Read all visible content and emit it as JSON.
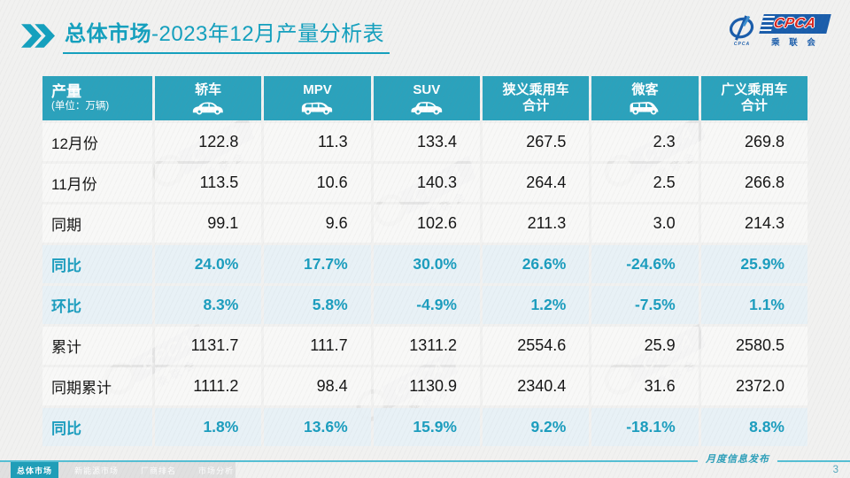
{
  "title": {
    "highlight": "总体市场",
    "rest": "-2023年12月产量分析表"
  },
  "logo": {
    "cpca": "CPCA",
    "association": "乘 联 会",
    "emblem_caption": "CPCA"
  },
  "table": {
    "corner": {
      "title": "产量",
      "subtitle": "(单位：万辆)"
    },
    "columns": [
      {
        "label": "轿车",
        "icon": "sedan-icon"
      },
      {
        "label": "MPV",
        "icon": "mpv-icon"
      },
      {
        "label": "SUV",
        "icon": "suv-icon"
      },
      {
        "label": "狭义乘用车",
        "label2": "合计"
      },
      {
        "label": "微客",
        "icon": "microvan-icon"
      },
      {
        "label": "广义乘用车",
        "label2": "合计"
      }
    ],
    "rows": [
      {
        "label": "12月份",
        "type": "normal",
        "values": [
          "122.8",
          "11.3",
          "133.4",
          "267.5",
          "2.3",
          "269.8"
        ]
      },
      {
        "label": "11月份",
        "type": "normal",
        "values": [
          "113.5",
          "10.6",
          "140.3",
          "264.4",
          "2.5",
          "266.8"
        ]
      },
      {
        "label": "同期",
        "type": "normal",
        "values": [
          "99.1",
          "9.6",
          "102.6",
          "211.3",
          "3.0",
          "214.3"
        ]
      },
      {
        "label": "同比",
        "type": "percent",
        "values": [
          "24.0%",
          "17.7%",
          "30.0%",
          "26.6%",
          "-24.6%",
          "25.9%"
        ]
      },
      {
        "label": "环比",
        "type": "percent",
        "values": [
          "8.3%",
          "5.8%",
          "-4.9%",
          "1.2%",
          "-7.5%",
          "1.1%"
        ]
      },
      {
        "label": "累计",
        "type": "normal",
        "values": [
          "1131.7",
          "111.7",
          "1311.2",
          "2554.6",
          "25.9",
          "2580.5"
        ]
      },
      {
        "label": "同期累计",
        "type": "normal",
        "values": [
          "1111.2",
          "98.4",
          "1130.9",
          "2340.4",
          "31.6",
          "2372.0"
        ]
      },
      {
        "label": "同比",
        "type": "percent",
        "values": [
          "1.8%",
          "13.6%",
          "15.9%",
          "9.2%",
          "-18.1%",
          "8.8%"
        ]
      }
    ]
  },
  "chart_data": {
    "type": "table",
    "title": "总体市场-2023年12月产量分析表",
    "unit": "万辆",
    "columns": [
      "产量",
      "轿车",
      "MPV",
      "SUV",
      "狭义乘用车合计",
      "微客",
      "广义乘用车合计"
    ],
    "rows": [
      [
        "12月份",
        122.8,
        11.3,
        133.4,
        267.5,
        2.3,
        269.8
      ],
      [
        "11月份",
        113.5,
        10.6,
        140.3,
        264.4,
        2.5,
        266.8
      ],
      [
        "同期",
        99.1,
        9.6,
        102.6,
        211.3,
        3.0,
        214.3
      ],
      [
        "同比",
        "24.0%",
        "17.7%",
        "30.0%",
        "26.6%",
        "-24.6%",
        "25.9%"
      ],
      [
        "环比",
        "8.3%",
        "5.8%",
        "-4.9%",
        "1.2%",
        "-7.5%",
        "1.1%"
      ],
      [
        "累计",
        1131.7,
        111.7,
        1311.2,
        2554.6,
        25.9,
        2580.5
      ],
      [
        "同期累计",
        1111.2,
        98.4,
        1130.9,
        2340.4,
        31.6,
        2372.0
      ],
      [
        "同比",
        "1.8%",
        "13.6%",
        "15.9%",
        "9.2%",
        "-18.1%",
        "8.8%"
      ]
    ]
  },
  "watermark": {
    "line1": "CPCA",
    "line2": "乘联会"
  },
  "footer": {
    "tabs": [
      {
        "key": "overall-market",
        "label": "总体市场",
        "active": true
      },
      {
        "key": "nev-market",
        "label": "新能源市场",
        "active": false
      },
      {
        "key": "manufacturer-ranking",
        "label": "厂商排名",
        "active": false
      },
      {
        "key": "market-analysis",
        "label": "市场分析",
        "active": false
      }
    ],
    "publication": "月度信息发布",
    "page_number": "3"
  },
  "colors": {
    "title_teal": "#14A0BE",
    "header_bg": "#2BA2BC",
    "percent_row_bg": "#E7F1F6",
    "percent_text": "#1B9DBE",
    "footer_line": "#55BFD4",
    "active_tab_bg": "#1F9EB8",
    "logo_blue": "#1A5DAB",
    "logo_red": "#D8261F"
  }
}
